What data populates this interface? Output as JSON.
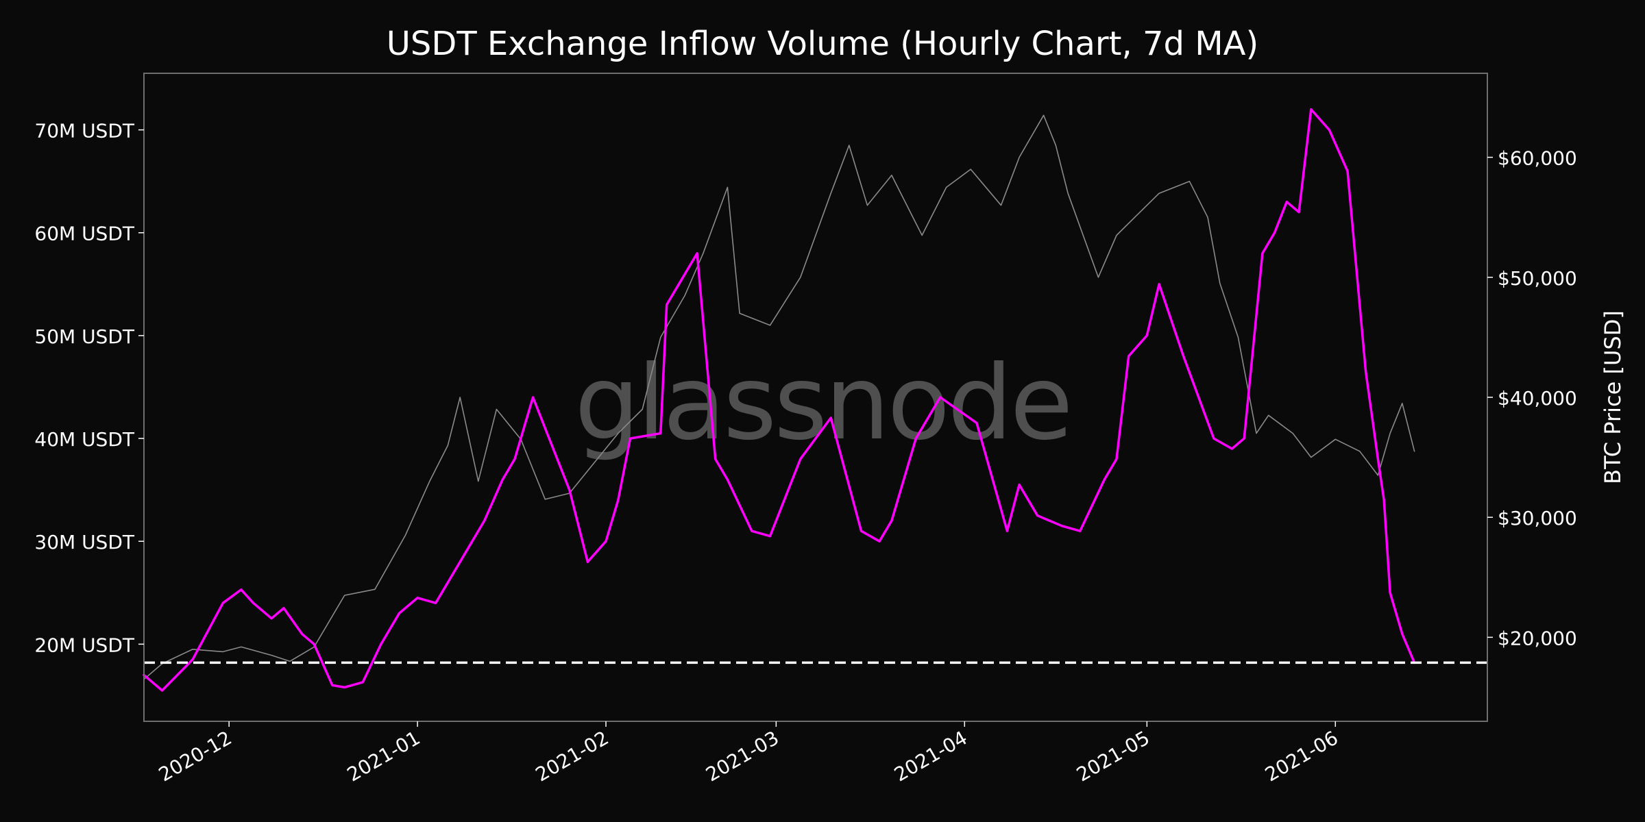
{
  "chart_data": {
    "type": "line",
    "title": "USDT Exchange Inflow Volume (Hourly Chart, 7d MA)",
    "watermark": "glassnode",
    "y_left": {
      "range": [
        12.5,
        75.5
      ],
      "ticks": [
        20,
        30,
        40,
        50,
        60,
        70
      ],
      "tick_labels": [
        "20M USDT",
        "30M USDT",
        "40M USDT",
        "50M USDT",
        "60M USDT",
        "70M USDT"
      ]
    },
    "y_right": {
      "label": "BTC Price [USD]",
      "range": [
        13000,
        67000
      ],
      "ticks": [
        20000,
        30000,
        40000,
        50000,
        60000
      ],
      "tick_labels": [
        "$20,000",
        "$30,000",
        "$40,000",
        "$50,000",
        "$60,000"
      ]
    },
    "x_axis": {
      "range": [
        "2020-11-17",
        "2021-06-26"
      ],
      "ticks": [
        "2020-12-01",
        "2021-01-01",
        "2021-02-01",
        "2021-03-01",
        "2021-04-01",
        "2021-05-01",
        "2021-06-01"
      ],
      "tick_labels": [
        "2020-12",
        "2021-01",
        "2021-02",
        "2021-03",
        "2021-04",
        "2021-05",
        "2021-06"
      ]
    },
    "reference_line": {
      "y": 18.2,
      "style": "dashed",
      "color": "#ffffff"
    },
    "series": [
      {
        "axis": "left",
        "color": "#ff00ff",
        "x": [
          "2020-11-17",
          "2020-11-20",
          "2020-11-25",
          "2020-11-30",
          "2020-12-03",
          "2020-12-05",
          "2020-12-08",
          "2020-12-10",
          "2020-12-13",
          "2020-12-15",
          "2020-12-18",
          "2020-12-20",
          "2020-12-23",
          "2020-12-26",
          "2020-12-29",
          "2021-01-01",
          "2021-01-04",
          "2021-01-08",
          "2021-01-12",
          "2021-01-15",
          "2021-01-17",
          "2021-01-20",
          "2021-01-22",
          "2021-01-26",
          "2021-01-29",
          "2021-02-01",
          "2021-02-03",
          "2021-02-05",
          "2021-02-10",
          "2021-02-11",
          "2021-02-13",
          "2021-02-16",
          "2021-02-19",
          "2021-02-21",
          "2021-02-25",
          "2021-02-28",
          "2021-03-05",
          "2021-03-10",
          "2021-03-15",
          "2021-03-18",
          "2021-03-20",
          "2021-03-24",
          "2021-03-28",
          "2021-04-03",
          "2021-04-08",
          "2021-04-10",
          "2021-04-13",
          "2021-04-17",
          "2021-04-20",
          "2021-04-24",
          "2021-04-26",
          "2021-04-28",
          "2021-05-01",
          "2021-05-03",
          "2021-05-07",
          "2021-05-12",
          "2021-05-15",
          "2021-05-17",
          "2021-05-20",
          "2021-05-22",
          "2021-05-24",
          "2021-05-26",
          "2021-05-28",
          "2021-05-31",
          "2021-06-03",
          "2021-06-06",
          "2021-06-08",
          "2021-06-09",
          "2021-06-10",
          "2021-06-12",
          "2021-06-14"
        ],
        "values": [
          17.0,
          15.5,
          18.5,
          24.0,
          25.3,
          24.0,
          22.5,
          23.5,
          21.0,
          20.0,
          16.0,
          15.8,
          16.3,
          20.0,
          23.0,
          24.5,
          24.0,
          28.0,
          32.0,
          36.0,
          38.0,
          44.0,
          41.0,
          35.0,
          28.0,
          30.0,
          34.0,
          40.0,
          40.5,
          53.0,
          55.0,
          58.0,
          38.0,
          36.0,
          31.0,
          30.5,
          38.0,
          42.0,
          31.0,
          30.0,
          32.0,
          40.0,
          44.0,
          41.5,
          31.0,
          35.5,
          32.5,
          31.5,
          31.0,
          36.0,
          38.0,
          48.0,
          50.0,
          55.0,
          48.0,
          40.0,
          39.0,
          40.0,
          58.0,
          60.0,
          63.0,
          62.0,
          72.0,
          70.0,
          66.0,
          46.5,
          38.0,
          34.0,
          25.0,
          21.0,
          18.2
        ]
      },
      {
        "axis": "right",
        "color": "#8a8a8a",
        "x": [
          "2020-11-17",
          "2020-11-20",
          "2020-11-25",
          "2020-11-30",
          "2020-12-03",
          "2020-12-08",
          "2020-12-11",
          "2020-12-15",
          "2020-12-20",
          "2020-12-25",
          "2020-12-30",
          "2021-01-03",
          "2021-01-06",
          "2021-01-08",
          "2021-01-11",
          "2021-01-14",
          "2021-01-18",
          "2021-01-22",
          "2021-01-26",
          "2021-01-30",
          "2021-02-03",
          "2021-02-07",
          "2021-02-10",
          "2021-02-14",
          "2021-02-17",
          "2021-02-21",
          "2021-02-23",
          "2021-02-28",
          "2021-03-05",
          "2021-03-10",
          "2021-03-13",
          "2021-03-16",
          "2021-03-20",
          "2021-03-25",
          "2021-03-29",
          "2021-04-02",
          "2021-04-07",
          "2021-04-10",
          "2021-04-14",
          "2021-04-16",
          "2021-04-18",
          "2021-04-23",
          "2021-04-26",
          "2021-04-29",
          "2021-05-03",
          "2021-05-08",
          "2021-05-11",
          "2021-05-13",
          "2021-05-16",
          "2021-05-19",
          "2021-05-21",
          "2021-05-25",
          "2021-05-28",
          "2021-06-01",
          "2021-06-05",
          "2021-06-08",
          "2021-06-10",
          "2021-06-12",
          "2021-06-14"
        ],
        "values": [
          16500,
          17800,
          19000,
          18800,
          19200,
          18500,
          18000,
          19200,
          23500,
          24000,
          28500,
          33000,
          36000,
          40000,
          33000,
          39000,
          36500,
          31500,
          32000,
          34500,
          37000,
          39000,
          45000,
          48500,
          52000,
          57500,
          47000,
          46000,
          50000,
          57000,
          61000,
          56000,
          58500,
          53500,
          57500,
          59000,
          56000,
          60000,
          63500,
          61000,
          57000,
          50000,
          53500,
          55000,
          57000,
          58000,
          55000,
          49500,
          45000,
          37000,
          38500,
          37000,
          35000,
          36500,
          35500,
          33500,
          37000,
          39500,
          35500
        ]
      }
    ]
  }
}
